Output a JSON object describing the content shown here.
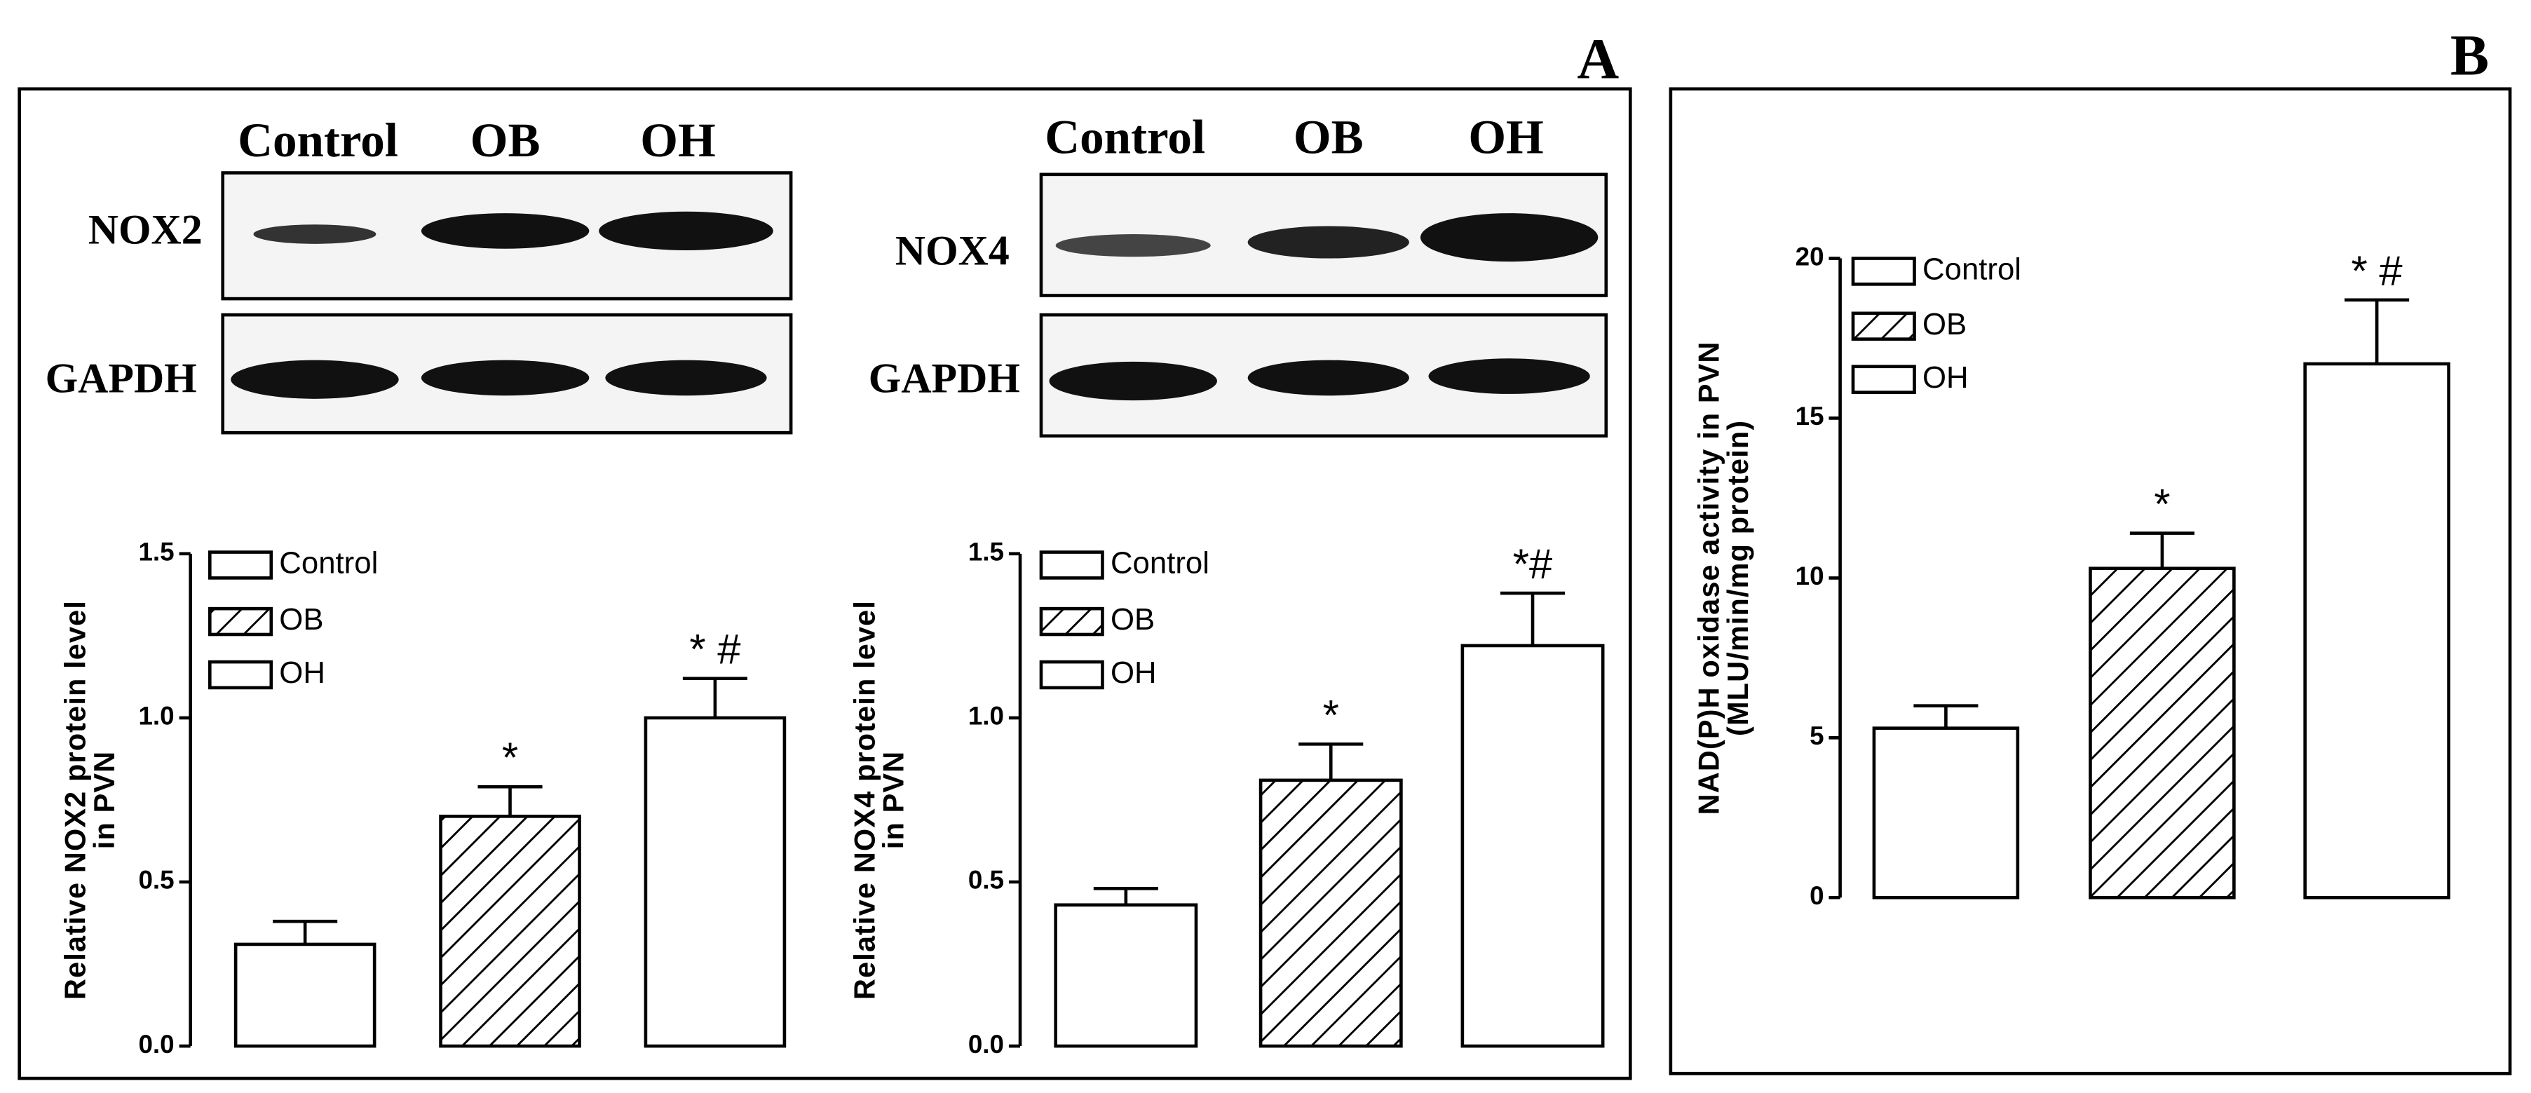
{
  "panel_labels": [
    "A",
    "B"
  ],
  "blots": [
    {
      "lanes": [
        "Control",
        "OB",
        "OH"
      ],
      "rows": [
        "NOX2",
        "GAPDH"
      ]
    },
    {
      "lanes": [
        "Control",
        "OB",
        "OH"
      ],
      "rows": [
        "NOX4",
        "GAPDH"
      ]
    }
  ],
  "chart_data": [
    {
      "type": "bar",
      "ylabel": [
        "Relative NOX2 protein level",
        "in PVN"
      ],
      "categories": [
        "Control",
        "OB",
        "OH"
      ],
      "values": [
        0.31,
        0.7,
        1.0
      ],
      "errors": [
        0.07,
        0.09,
        0.12
      ],
      "annotations": [
        null,
        "*",
        "* #"
      ],
      "hatch": [
        null,
        "/",
        "\\"
      ],
      "color": "#000000",
      "ylim": [
        0,
        1.5
      ],
      "yticks": [
        {
          "value": 0,
          "label": "0.0"
        },
        0.5,
        {
          "value": 1,
          "label": "1.0"
        },
        1.5
      ]
    },
    {
      "type": "bar",
      "ylabel": [
        "Relative NOX4 protein level",
        "in PVN"
      ],
      "categories": [
        "Control",
        "OB",
        "OH"
      ],
      "values": [
        0.43,
        0.81,
        1.22
      ],
      "errors": [
        0.05,
        0.11,
        0.16
      ],
      "annotations": [
        null,
        "*",
        "*#"
      ],
      "hatch": [
        null,
        "/",
        "\\"
      ],
      "color": "#000000",
      "ylim": [
        0,
        1.5
      ],
      "yticks": [
        {
          "value": 0,
          "label": "0.0"
        },
        0.5,
        {
          "value": 1,
          "label": "1.0"
        },
        1.5
      ]
    },
    {
      "type": "bar",
      "ylabel": [
        "NAD(P)H oxidase activity in PVN",
        "(MLU/min/mg protein)"
      ],
      "categories": [
        "Control",
        "OB",
        "OH"
      ],
      "values": [
        5.3,
        10.3,
        16.7
      ],
      "errors": [
        0.7,
        1.1,
        2.0
      ],
      "annotations": [
        null,
        "*",
        "* #"
      ],
      "hatch": [
        null,
        "/",
        "\\"
      ],
      "color": "#000000",
      "ylim": [
        0,
        20
      ],
      "yticks": [
        0,
        5,
        10,
        15,
        20
      ]
    }
  ]
}
